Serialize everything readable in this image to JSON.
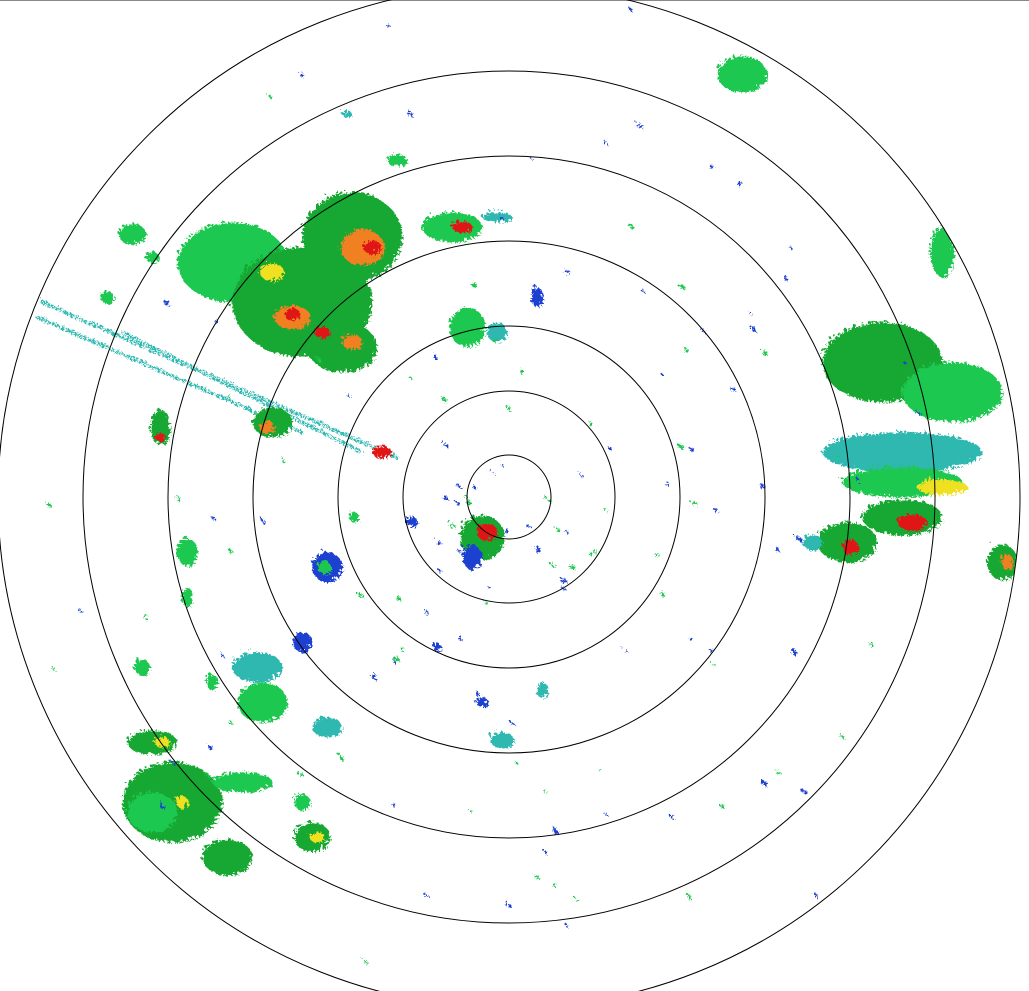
{
  "display": {
    "type": "radar-ppi",
    "range_rings": 7,
    "ring_color": "#000000",
    "background": "#ffffff"
  },
  "reflectivity_colors": {
    "weak": "#1f3fd0",
    "light": "#2fb8b0",
    "moderate": "#1fc850",
    "strong": "#18a830",
    "heavy": "#f0e020",
    "intense": "#f08020",
    "extreme": "#e01818"
  }
}
